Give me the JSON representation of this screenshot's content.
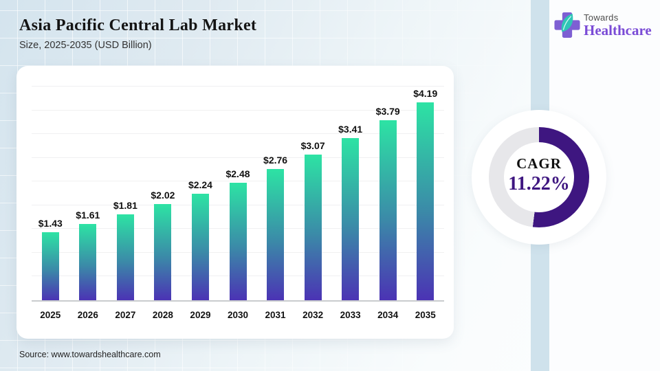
{
  "header": {
    "title": "Asia Pacific Central Lab Market",
    "subtitle": "Size, 2025-2035 (USD Billion)"
  },
  "logo": {
    "line1": "Towards",
    "line2": "Healthcare",
    "cross_color": "#7e5fd3",
    "leaf_color": "#2fc5b6",
    "wordmark_color": "#7a4bd6"
  },
  "chart_data": {
    "type": "bar",
    "title": "Asia Pacific Central Lab Market Size, 2025-2035 (USD Billion)",
    "categories": [
      "2025",
      "2026",
      "2027",
      "2028",
      "2029",
      "2030",
      "2031",
      "2032",
      "2033",
      "2034",
      "2035"
    ],
    "values": [
      1.43,
      1.61,
      1.81,
      2.02,
      2.24,
      2.48,
      2.76,
      3.07,
      3.41,
      3.79,
      4.19
    ],
    "value_prefix": "$",
    "xlabel": "",
    "ylabel": "USD Billion",
    "ylim": [
      0,
      4.5
    ],
    "gridline_step": 0.5,
    "grid": true,
    "legend": false,
    "bar_gradient_top": "#2de3a4",
    "bar_gradient_mid": "#3b8aa8",
    "bar_gradient_bottom": "#4b33b4"
  },
  "cagr": {
    "label": "CAGR",
    "value": "11.22%",
    "arc_percent": 52,
    "arc_color": "#3e1680",
    "track_color": "#e7e7ea"
  },
  "source": {
    "text": "Source: www.towardshealthcare.com"
  }
}
